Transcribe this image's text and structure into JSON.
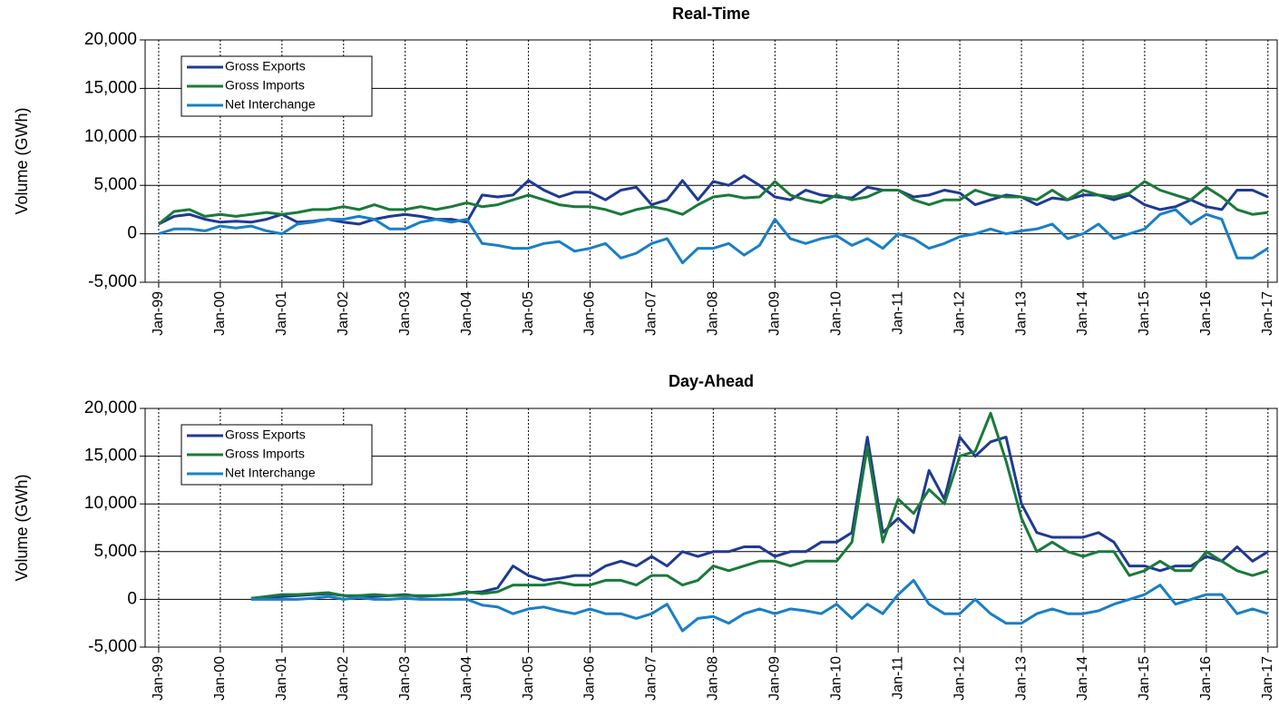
{
  "chart_data": [
    {
      "type": "line",
      "title": "Real-Time",
      "y_label": "Volume (GWh)",
      "legend": "upper left",
      "grid": true,
      "xlim": [
        1998.78,
        2017.15
      ],
      "xticks": [
        {
          "value": 1999,
          "label": "Jan-99"
        },
        {
          "value": 2000,
          "label": "Jan-00"
        },
        {
          "value": 2001,
          "label": "Jan-01"
        },
        {
          "value": 2002,
          "label": "Jan-02"
        },
        {
          "value": 2003,
          "label": "Jan-03"
        },
        {
          "value": 2004,
          "label": "Jan-04"
        },
        {
          "value": 2005,
          "label": "Jan-05"
        },
        {
          "value": 2006,
          "label": "Jan-06"
        },
        {
          "value": 2007,
          "label": "Jan-07"
        },
        {
          "value": 2008,
          "label": "Jan-08"
        },
        {
          "value": 2009,
          "label": "Jan-09"
        },
        {
          "value": 2010,
          "label": "Jan-10"
        },
        {
          "value": 2011,
          "label": "Jan-11"
        },
        {
          "value": 2012,
          "label": "Jan-12"
        },
        {
          "value": 2013,
          "label": "Jan-13"
        },
        {
          "value": 2014,
          "label": "Jan-14"
        },
        {
          "value": 2015,
          "label": "Jan-15"
        },
        {
          "value": 2016,
          "label": "Jan-16"
        },
        {
          "value": 2017,
          "label": "Jan-17"
        }
      ],
      "ylim": [
        -5000,
        20000
      ],
      "yticks": [
        {
          "value": -5000,
          "label": "-5,000"
        },
        0,
        {
          "value": 5000,
          "label": "5,000"
        },
        {
          "value": 10000,
          "label": "10,000"
        },
        {
          "value": 15000,
          "label": "15,000"
        },
        {
          "value": 20000,
          "label": "20,000"
        }
      ],
      "x": [
        1999,
        1999.25,
        1999.5,
        1999.75,
        2000,
        2000.25,
        2000.5,
        2000.75,
        2001,
        2001.25,
        2001.5,
        2001.75,
        2002,
        2002.25,
        2002.5,
        2002.75,
        2003,
        2003.25,
        2003.5,
        2003.75,
        2004,
        2004.25,
        2004.5,
        2004.75,
        2005,
        2005.25,
        2005.5,
        2005.75,
        2006,
        2006.25,
        2006.5,
        2006.75,
        2007,
        2007.25,
        2007.5,
        2007.75,
        2008,
        2008.25,
        2008.5,
        2008.75,
        2009,
        2009.25,
        2009.5,
        2009.75,
        2010,
        2010.25,
        2010.5,
        2010.75,
        2011,
        2011.25,
        2011.5,
        2011.75,
        2012,
        2012.25,
        2012.5,
        2012.75,
        2013,
        2013.25,
        2013.5,
        2013.75,
        2014,
        2014.25,
        2014.5,
        2014.75,
        2015,
        2015.25,
        2015.5,
        2015.75,
        2016,
        2016.25,
        2016.5,
        2016.75,
        2017
      ],
      "series": [
        {
          "name": "Gross Exports",
          "color": "#1f3a93",
          "values": [
            1000,
            1800,
            2000,
            1500,
            1200,
            1300,
            1200,
            1500,
            2000,
            1200,
            1300,
            1500,
            1200,
            1000,
            1500,
            1800,
            2000,
            1800,
            1500,
            1500,
            1200,
            4000,
            3800,
            4000,
            5500,
            4500,
            3800,
            4300,
            4300,
            3500,
            4500,
            4800,
            3000,
            3500,
            5500,
            3500,
            5400,
            5000,
            6000,
            5000,
            3800,
            3500,
            4500,
            4000,
            3800,
            3700,
            4800,
            4500,
            4500,
            3800,
            4000,
            4500,
            4200,
            3000,
            3500,
            4000,
            3800,
            3000,
            3700,
            3500,
            4000,
            4000,
            3500,
            4000,
            3000,
            2500,
            2800,
            3500,
            2800,
            2500,
            4500,
            4500,
            3800
          ]
        },
        {
          "name": "Gross Imports",
          "color": "#1a7a3a",
          "values": [
            1000,
            2300,
            2500,
            1800,
            2000,
            1800,
            2000,
            2200,
            2000,
            2200,
            2500,
            2500,
            2800,
            2500,
            3000,
            2500,
            2500,
            2800,
            2500,
            2800,
            3200,
            2800,
            3000,
            3500,
            4000,
            3500,
            3000,
            2800,
            2800,
            2500,
            2000,
            2500,
            2800,
            2500,
            2000,
            3000,
            3800,
            4000,
            3700,
            3800,
            5400,
            4000,
            3500,
            3200,
            4000,
            3500,
            3800,
            4500,
            4500,
            3500,
            3000,
            3500,
            3500,
            4500,
            4000,
            3800,
            3800,
            3500,
            4500,
            3500,
            4500,
            4000,
            3800,
            4200,
            5400,
            4500,
            4000,
            3500,
            4800,
            3800,
            2500,
            2000,
            2200
          ]
        },
        {
          "name": "Net Interchange",
          "color": "#1a7fc6",
          "values": [
            0,
            500,
            500,
            300,
            800,
            600,
            800,
            300,
            0,
            1000,
            1200,
            1500,
            1500,
            1800,
            1500,
            500,
            500,
            1200,
            1500,
            1200,
            1500,
            -1000,
            -1200,
            -1500,
            -1500,
            -1000,
            -800,
            -1800,
            -1500,
            -1000,
            -2500,
            -2000,
            -1000,
            -500,
            -3000,
            -1500,
            -1500,
            -1000,
            -2200,
            -1200,
            1500,
            -500,
            -1000,
            -500,
            -200,
            -1200,
            -500,
            -1500,
            0,
            -500,
            -1500,
            -1000,
            -300,
            0,
            500,
            0,
            300,
            500,
            1000,
            -500,
            0,
            1000,
            -500,
            0,
            500,
            2000,
            2500,
            1000,
            2000,
            1500,
            -2500,
            -2500,
            -1500
          ]
        }
      ]
    },
    {
      "type": "line",
      "title": "Day-Ahead",
      "y_label": "Volume (GWh)",
      "legend": "upper left",
      "grid": true,
      "xlim": [
        1998.78,
        2017.15
      ],
      "xticks": [
        {
          "value": 1999,
          "label": "Jan-99"
        },
        {
          "value": 2000,
          "label": "Jan-00"
        },
        {
          "value": 2001,
          "label": "Jan-01"
        },
        {
          "value": 2002,
          "label": "Jan-02"
        },
        {
          "value": 2003,
          "label": "Jan-03"
        },
        {
          "value": 2004,
          "label": "Jan-04"
        },
        {
          "value": 2005,
          "label": "Jan-05"
        },
        {
          "value": 2006,
          "label": "Jan-06"
        },
        {
          "value": 2007,
          "label": "Jan-07"
        },
        {
          "value": 2008,
          "label": "Jan-08"
        },
        {
          "value": 2009,
          "label": "Jan-09"
        },
        {
          "value": 2010,
          "label": "Jan-10"
        },
        {
          "value": 2011,
          "label": "Jan-11"
        },
        {
          "value": 2012,
          "label": "Jan-12"
        },
        {
          "value": 2013,
          "label": "Jan-13"
        },
        {
          "value": 2014,
          "label": "Jan-14"
        },
        {
          "value": 2015,
          "label": "Jan-15"
        },
        {
          "value": 2016,
          "label": "Jan-16"
        },
        {
          "value": 2017,
          "label": "Jan-17"
        }
      ],
      "ylim": [
        -5000,
        20000
      ],
      "yticks": [
        {
          "value": -5000,
          "label": "-5,000"
        },
        0,
        {
          "value": 5000,
          "label": "5,000"
        },
        {
          "value": 10000,
          "label": "10,000"
        },
        {
          "value": 15000,
          "label": "15,000"
        },
        {
          "value": 20000,
          "label": "20,000"
        }
      ],
      "x": [
        1999,
        1999.25,
        1999.5,
        1999.75,
        2000,
        2000.25,
        2000.5,
        2000.75,
        2001,
        2001.25,
        2001.5,
        2001.75,
        2002,
        2002.25,
        2002.5,
        2002.75,
        2003,
        2003.25,
        2003.5,
        2003.75,
        2004,
        2004.25,
        2004.5,
        2004.75,
        2005,
        2005.25,
        2005.5,
        2005.75,
        2006,
        2006.25,
        2006.5,
        2006.75,
        2007,
        2007.25,
        2007.5,
        2007.75,
        2008,
        2008.25,
        2008.5,
        2008.75,
        2009,
        2009.25,
        2009.5,
        2009.75,
        2010,
        2010.25,
        2010.5,
        2010.75,
        2011,
        2011.25,
        2011.5,
        2011.75,
        2012,
        2012.25,
        2012.5,
        2012.75,
        2013,
        2013.25,
        2013.5,
        2013.75,
        2014,
        2014.25,
        2014.5,
        2014.75,
        2015,
        2015.25,
        2015.5,
        2015.75,
        2016,
        2016.25,
        2016.5,
        2016.75,
        2017
      ],
      "series": [
        {
          "name": "Gross Exports",
          "color": "#1f3a93",
          "values": [
            null,
            null,
            null,
            null,
            null,
            null,
            100,
            200,
            300,
            400,
            500,
            600,
            400,
            300,
            300,
            400,
            500,
            300,
            400,
            500,
            700,
            800,
            1200,
            3500,
            2500,
            2000,
            2200,
            2500,
            2500,
            3500,
            4000,
            3500,
            4500,
            3500,
            5000,
            4500,
            5000,
            5000,
            5500,
            5500,
            4500,
            5000,
            5000,
            6000,
            6000,
            7000,
            17000,
            7000,
            8500,
            7000,
            13500,
            10500,
            17000,
            15000,
            16500,
            17000,
            10000,
            7000,
            6500,
            6500,
            6500,
            7000,
            6000,
            3500,
            3500,
            3000,
            3500,
            3500,
            4500,
            4000,
            5500,
            4000,
            5000
          ]
        },
        {
          "name": "Gross Imports",
          "color": "#1a7a3a",
          "values": [
            null,
            null,
            null,
            null,
            null,
            null,
            100,
            300,
            500,
            500,
            600,
            700,
            400,
            400,
            500,
            400,
            400,
            400,
            400,
            500,
            800,
            600,
            800,
            1500,
            1500,
            1500,
            1800,
            1500,
            1500,
            2000,
            2000,
            1500,
            2500,
            2500,
            1500,
            2000,
            3500,
            3000,
            3500,
            4000,
            4000,
            3500,
            4000,
            4000,
            4000,
            6000,
            16000,
            6000,
            10500,
            9000,
            11500,
            10000,
            15000,
            15500,
            19500,
            14500,
            8500,
            5000,
            6000,
            5000,
            4500,
            5000,
            5000,
            2500,
            3000,
            4000,
            3000,
            3000,
            5000,
            4000,
            3000,
            2500,
            3000
          ]
        },
        {
          "name": "Net Interchange",
          "color": "#1a7fc6",
          "values": [
            null,
            null,
            null,
            null,
            null,
            null,
            0,
            0,
            0,
            0,
            100,
            300,
            0,
            200,
            0,
            0,
            100,
            0,
            0,
            0,
            0,
            -600,
            -800,
            -1500,
            -1000,
            -800,
            -1200,
            -1500,
            -1000,
            -1500,
            -1500,
            -2000,
            -1500,
            -500,
            -3300,
            -2000,
            -1800,
            -2500,
            -1500,
            -1000,
            -1500,
            -1000,
            -1200,
            -1500,
            -500,
            -2000,
            -500,
            -1500,
            500,
            2000,
            -500,
            -1500,
            -1500,
            0,
            -1500,
            -2500,
            -2500,
            -1500,
            -1000,
            -1500,
            -1500,
            -1200,
            -500,
            0,
            500,
            1500,
            -500,
            0,
            500,
            500,
            -1500,
            -1000,
            -1500
          ]
        }
      ]
    }
  ]
}
